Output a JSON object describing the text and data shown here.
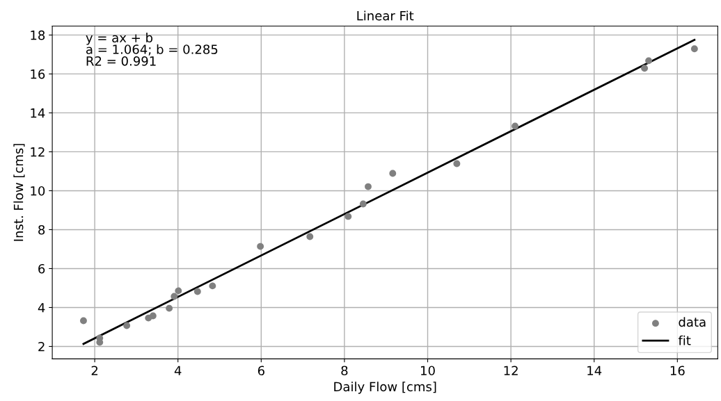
{
  "chart_data": {
    "type": "scatter",
    "title": "Linear Fit",
    "xlabel": "Daily Flow [cms]",
    "ylabel": "Inst. Flow [cms]",
    "annotations": [
      "y = ax + b",
      "a = 1.064; b = 0.285",
      "R2 = 0.991"
    ],
    "series": [
      {
        "name": "data",
        "color": "#808080",
        "marker": "circle",
        "x": [
          1.73,
          2.12,
          2.12,
          2.77,
          3.29,
          3.4,
          3.79,
          3.91,
          4.01,
          4.47,
          4.83,
          5.98,
          7.17,
          8.09,
          8.45,
          8.57,
          9.16,
          10.7,
          12.1,
          15.21,
          15.31,
          16.41
        ],
        "values": [
          3.32,
          2.43,
          2.21,
          3.07,
          3.46,
          3.57,
          3.96,
          4.57,
          4.86,
          4.82,
          5.11,
          7.14,
          7.64,
          8.68,
          9.32,
          10.21,
          10.89,
          11.39,
          13.32,
          16.29,
          16.68,
          17.29
        ]
      },
      {
        "name": "fit",
        "type": "line",
        "color": "#000000",
        "line_style": "solid",
        "x": [
          1.73,
          16.41
        ],
        "values": [
          2.13,
          17.75
        ]
      }
    ],
    "xlim": [
      0.98,
      16.97
    ],
    "ylim": [
      1.36,
      18.46
    ],
    "xticks": [
      2,
      4,
      6,
      8,
      10,
      12,
      14,
      16
    ],
    "yticks": [
      2,
      4,
      6,
      8,
      10,
      12,
      14,
      16,
      18
    ],
    "grid": true,
    "legend": "lower right"
  }
}
